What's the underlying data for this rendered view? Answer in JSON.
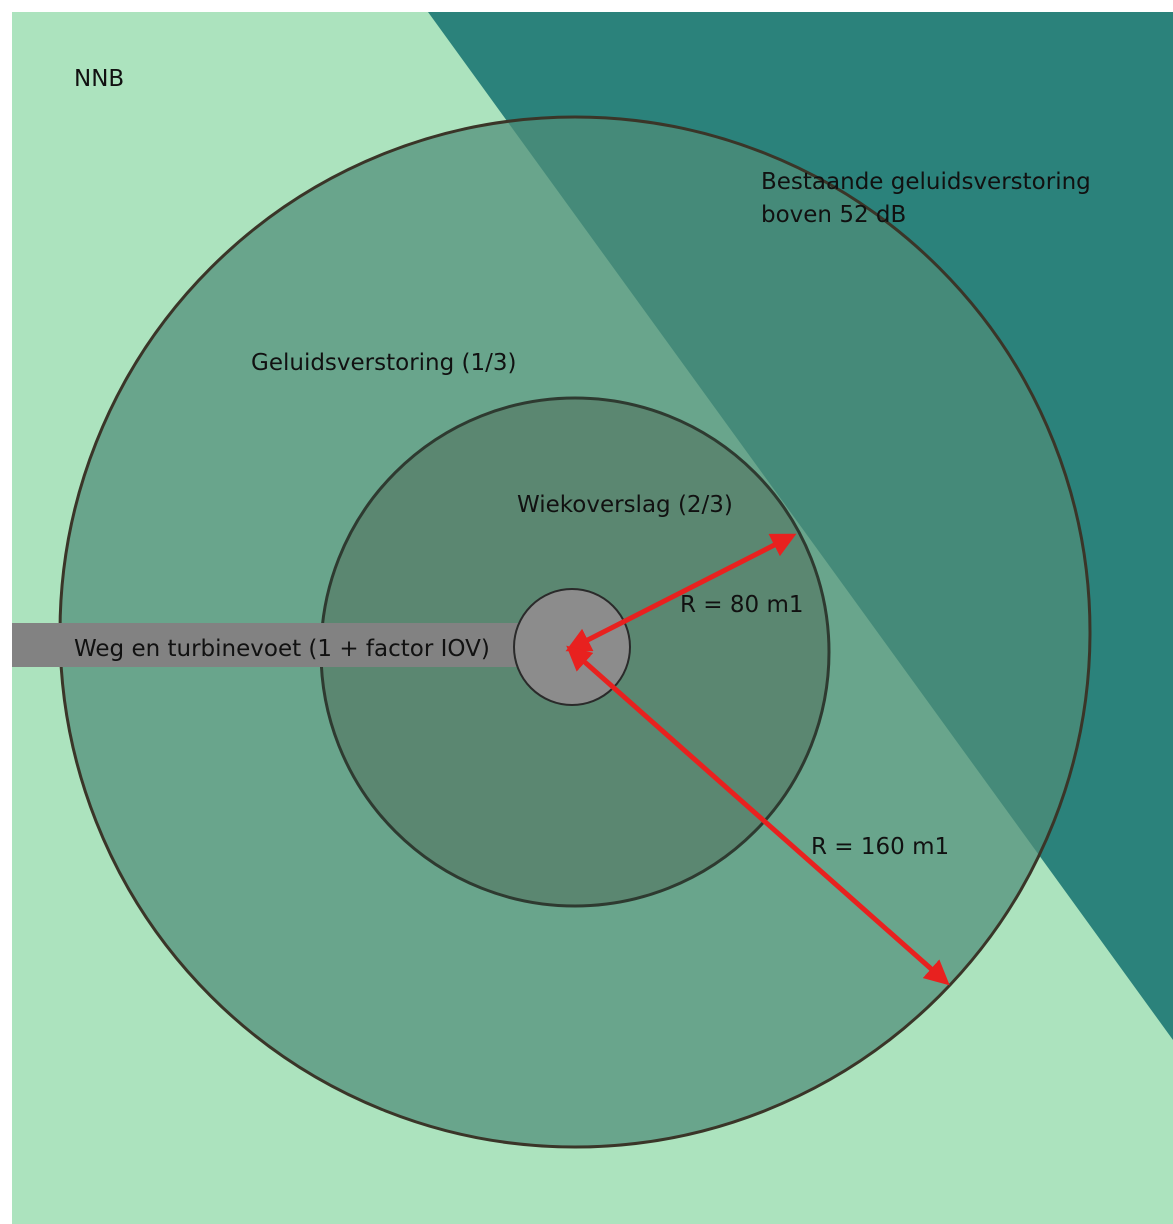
{
  "labels": {
    "area": "NNB",
    "existing_noise_line1": "Bestaande geluidsverstoring",
    "existing_noise_line2": "boven 52 dB",
    "noise_zone": "Geluidsverstoring (1/3)",
    "rotor_zone": "Wiekoverslag (2/3)",
    "road": "Weg en turbinevoet (1 + factor IOV)",
    "radius_small": "R = 80 m1",
    "radius_large": "R = 160 m1"
  },
  "colors": {
    "background": "#ace3be",
    "existing_noise": "#1f7a75",
    "outer_ring": "#5f9d88",
    "inner_ring": "#57806a",
    "turbine_base": "#8c8c8c",
    "road": "#828282",
    "arrows": "#e8211f",
    "outline": "#3a3528"
  }
}
